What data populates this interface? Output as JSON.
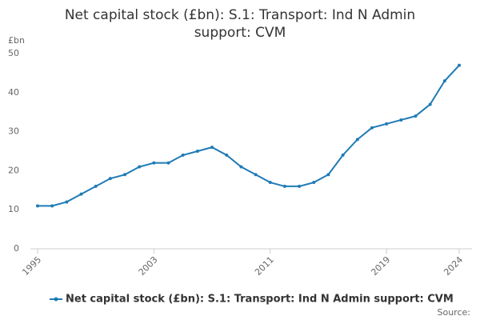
{
  "chart_data": {
    "type": "line",
    "title": "Net capital stock (£bn): S.1: Transport: Ind N Admin support: CVM",
    "y_unit": "£bn",
    "source": "Source:",
    "x": [
      1995,
      1996,
      1997,
      1998,
      1999,
      2000,
      2001,
      2002,
      2003,
      2004,
      2005,
      2006,
      2007,
      2008,
      2009,
      2010,
      2011,
      2012,
      2013,
      2014,
      2015,
      2016,
      2017,
      2018,
      2019,
      2020,
      2021,
      2022,
      2023,
      2024
    ],
    "series": [
      {
        "name": "Net capital stock (£bn): S.1: Transport: Ind N Admin support: CVM",
        "color": "#1f7bb6",
        "values": [
          11,
          11,
          12,
          14,
          16,
          18,
          19,
          21,
          22,
          22,
          24,
          25,
          26,
          24,
          21,
          19,
          17,
          16,
          16,
          17,
          19,
          24,
          28,
          31,
          32,
          33,
          34,
          37,
          43,
          47
        ]
      }
    ],
    "xlim": [
      1995,
      2024
    ],
    "xticks": [
      1995,
      2003,
      2011,
      2019,
      2024
    ],
    "ylim": [
      0,
      50
    ],
    "yticks": [
      0,
      10,
      20,
      30,
      40,
      50
    ],
    "grid": true,
    "legend": "bottom"
  }
}
